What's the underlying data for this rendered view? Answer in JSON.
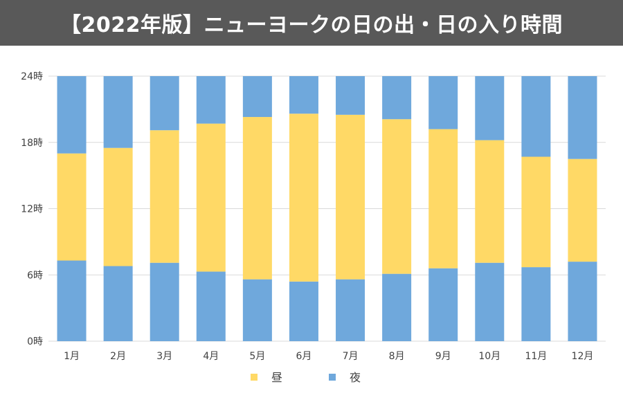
{
  "title": "【2022年版】ニューヨークの日の出・日の入り時間",
  "chart_data": {
    "type": "bar",
    "stacked": true,
    "categories": [
      "1月",
      "2月",
      "3月",
      "4月",
      "5月",
      "6月",
      "7月",
      "8月",
      "9月",
      "10月",
      "11月",
      "12月"
    ],
    "series": [
      {
        "name": "夜",
        "key": "night_morning",
        "color": "#6fa8dc",
        "values": [
          7.3,
          6.8,
          7.1,
          6.3,
          5.6,
          5.4,
          5.6,
          6.1,
          6.6,
          7.1,
          6.7,
          7.2
        ]
      },
      {
        "name": "昼",
        "key": "day",
        "color": "#ffd966",
        "values": [
          9.7,
          10.7,
          12.0,
          13.4,
          14.7,
          15.2,
          14.9,
          14.0,
          12.6,
          11.1,
          10.0,
          9.3
        ]
      },
      {
        "name": "夜",
        "key": "night_evening",
        "color": "#6fa8dc",
        "values": [
          7.0,
          6.5,
          4.9,
          4.3,
          3.7,
          3.4,
          3.5,
          3.9,
          4.8,
          5.8,
          7.3,
          7.5
        ]
      }
    ],
    "ylim": [
      0,
      24
    ],
    "yticks": [
      {
        "value": 0,
        "label": "0時"
      },
      {
        "value": 6,
        "label": "6時"
      },
      {
        "value": 12,
        "label": "12時"
      },
      {
        "value": 18,
        "label": "18時"
      },
      {
        "value": 24,
        "label": "24時"
      }
    ],
    "grid": true,
    "legend": {
      "position": "bottom",
      "items": [
        {
          "label": "昼",
          "color": "#ffd966"
        },
        {
          "label": "夜",
          "color": "#6fa8dc"
        }
      ]
    }
  }
}
